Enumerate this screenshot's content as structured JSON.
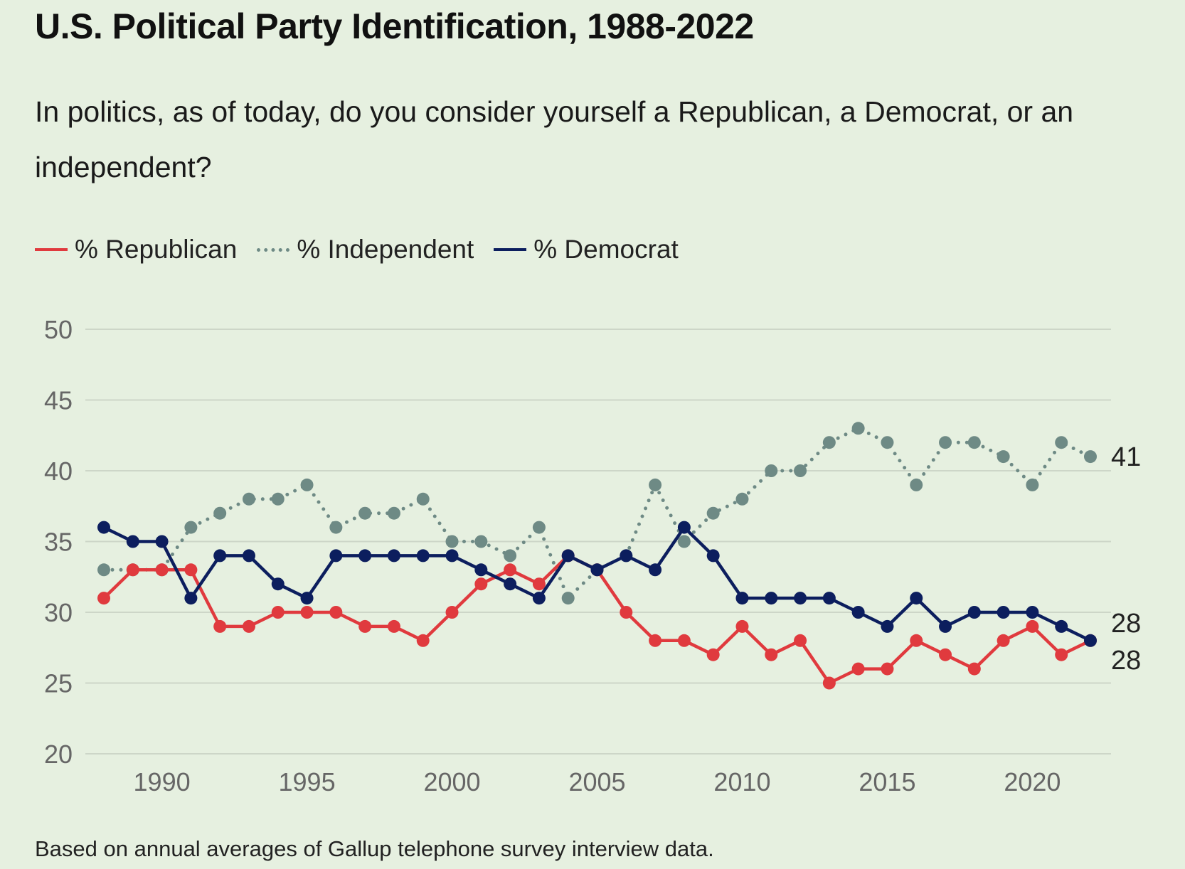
{
  "chart_data": {
    "type": "line",
    "title": "U.S. Political Party Identification, 1988-2022",
    "subtitle": "In politics, as of today, do you consider yourself a Republican, a Democrat, or an independent?",
    "footnote": "Based on annual averages of Gallup telephone survey interview data.",
    "xlabel": "",
    "ylabel": "",
    "x": [
      1988,
      1989,
      1990,
      1991,
      1992,
      1993,
      1994,
      1995,
      1996,
      1997,
      1998,
      1999,
      2000,
      2001,
      2002,
      2003,
      2004,
      2005,
      2006,
      2007,
      2008,
      2009,
      2010,
      2011,
      2012,
      2013,
      2014,
      2015,
      2016,
      2017,
      2018,
      2019,
      2020,
      2021,
      2022
    ],
    "xlim": [
      1988,
      2022
    ],
    "xticks": [
      1990,
      1995,
      2000,
      2005,
      2010,
      2015,
      2020
    ],
    "ylim": [
      20,
      50
    ],
    "yticks": [
      20,
      25,
      30,
      35,
      40,
      45,
      50
    ],
    "grid": "horizontal",
    "legend_position": "top-left",
    "series": [
      {
        "name": "% Republican",
        "key": "republican",
        "color": "#e03a3e",
        "style": "solid",
        "end_label": "28",
        "values": [
          31,
          33,
          33,
          33,
          29,
          29,
          30,
          30,
          30,
          29,
          29,
          28,
          30,
          32,
          33,
          32,
          34,
          33,
          30,
          28,
          28,
          27,
          29,
          27,
          28,
          25,
          26,
          26,
          28,
          27,
          26,
          28,
          29,
          27,
          28
        ]
      },
      {
        "name": "% Independent",
        "key": "independent",
        "color": "#6e8a85",
        "style": "dotted",
        "end_label": "41",
        "values": [
          33,
          33,
          33,
          36,
          37,
          38,
          38,
          39,
          36,
          37,
          37,
          38,
          35,
          35,
          34,
          36,
          31,
          33,
          34,
          39,
          35,
          37,
          38,
          40,
          40,
          42,
          43,
          42,
          39,
          42,
          42,
          41,
          39,
          42,
          41
        ]
      },
      {
        "name": "% Democrat",
        "key": "democrat",
        "color": "#0c1e5e",
        "style": "solid",
        "end_label": "28",
        "values": [
          36,
          35,
          35,
          31,
          34,
          34,
          32,
          31,
          34,
          34,
          34,
          34,
          34,
          33,
          32,
          31,
          34,
          33,
          34,
          33,
          36,
          34,
          31,
          31,
          31,
          31,
          30,
          29,
          31,
          29,
          30,
          30,
          30,
          29,
          28
        ]
      }
    ]
  }
}
